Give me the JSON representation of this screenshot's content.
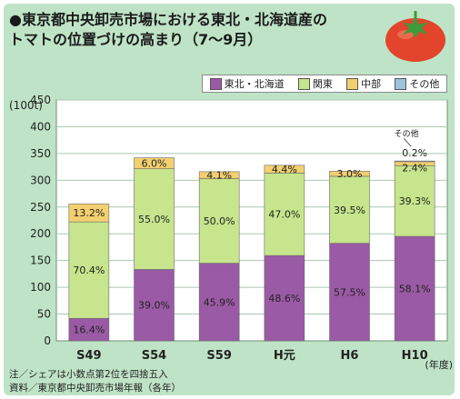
{
  "title_line1": "●東京都中央卸売市場における東北・北海道産の",
  "title_line2": "トマトの位置づけの高まり（7〜9月）",
  "legend": [
    {
      "label": "東北・北海道",
      "color": "#9b5aa5"
    },
    {
      "label": "関東",
      "color": "#c6e58c"
    },
    {
      "label": "中部",
      "color": "#f3cf6f"
    },
    {
      "label": "その他",
      "color": "#9ec3dd"
    }
  ],
  "notes": {
    "line1": "注／シェアは小数点第2位を四捨五入",
    "line2": "資料／東京都中央卸売市場年報（各年）"
  },
  "chart_data": {
    "type": "bar",
    "stacked": true,
    "ylabel": "(100t)",
    "xlabel": "(年度)",
    "ylim": [
      0,
      450
    ],
    "yticks": [
      0,
      50,
      100,
      150,
      200,
      250,
      300,
      350,
      400,
      450
    ],
    "grid": true,
    "categories": [
      "S49",
      "S54",
      "S59",
      "H元",
      "H6",
      "H10"
    ],
    "totals": [
      256,
      342,
      316,
      328,
      317,
      336
    ],
    "series": [
      {
        "name": "東北・北海道",
        "color": "#9b5aa5",
        "shares": [
          16.4,
          39.0,
          45.9,
          48.6,
          57.5,
          58.1
        ],
        "labels": [
          "16.4%",
          "39.0%",
          "45.9%",
          "48.6%",
          "57.5%",
          "58.1%"
        ]
      },
      {
        "name": "関東",
        "color": "#c6e58c",
        "shares": [
          70.4,
          55.0,
          50.0,
          47.0,
          39.5,
          39.3
        ],
        "labels": [
          "70.4%",
          "55.0%",
          "50.0%",
          "47.0%",
          "39.5%",
          "39.3%"
        ]
      },
      {
        "name": "中部",
        "color": "#f3cf6f",
        "shares": [
          13.2,
          6.0,
          4.1,
          4.4,
          3.0,
          2.4
        ],
        "labels": [
          "13.2%",
          "6.0%",
          "4.1%",
          "4.4%",
          "3.0%",
          "2.4%"
        ]
      },
      {
        "name": "その他",
        "color": "#9ec3dd",
        "shares": [
          0,
          0,
          0,
          0,
          0,
          0.2
        ],
        "labels": [
          "",
          "",
          "",
          "",
          "",
          "0.2%"
        ]
      }
    ],
    "annotations": [
      {
        "category": "H10",
        "text": "その他"
      }
    ]
  }
}
